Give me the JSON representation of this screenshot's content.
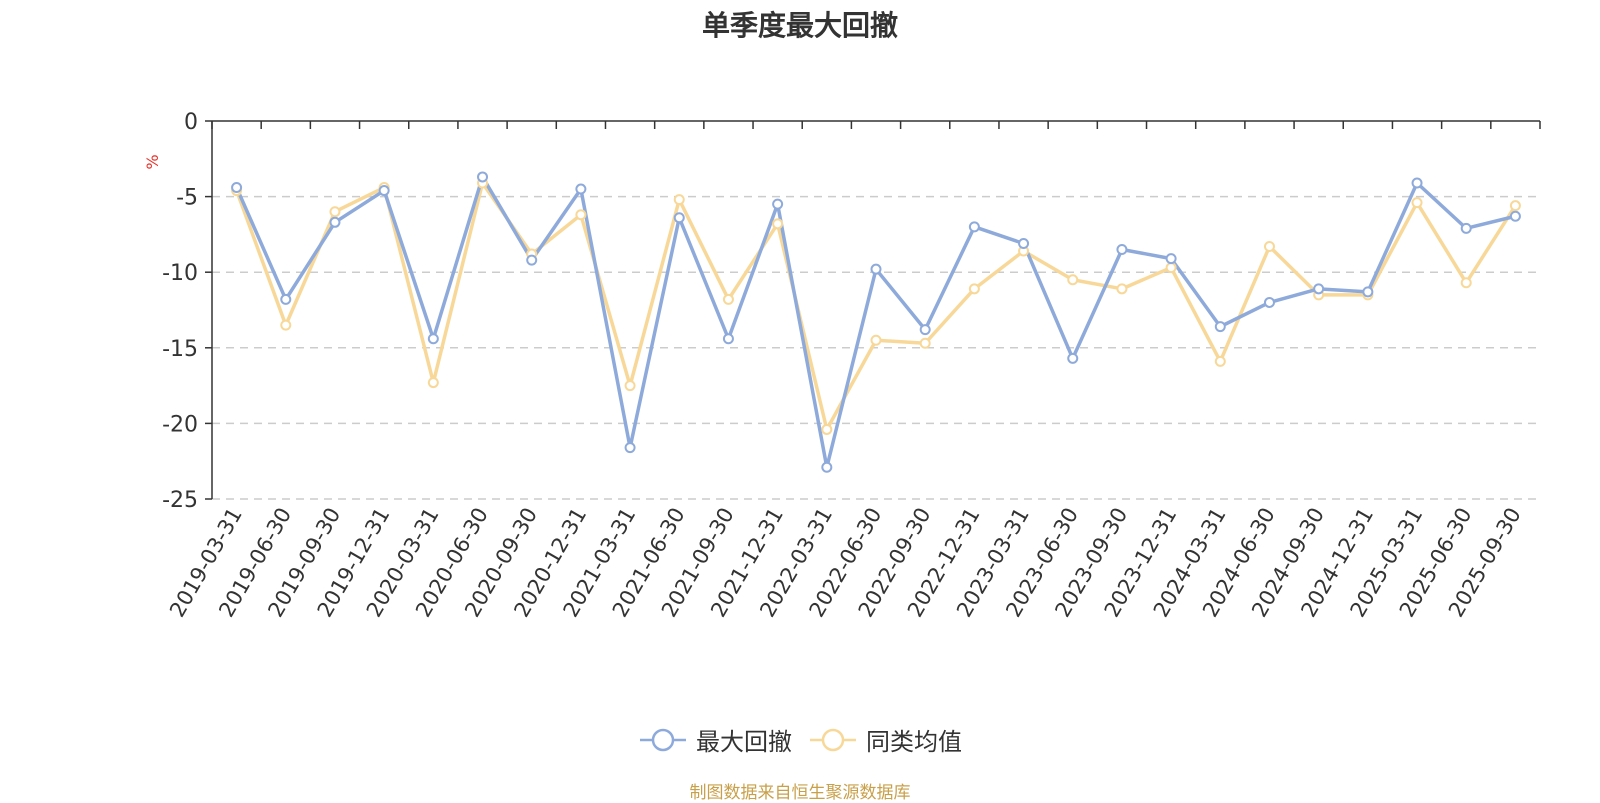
{
  "chart_data": {
    "type": "line",
    "title": "单季度最大回撤",
    "ylabel": "%",
    "xlabel": "",
    "ylim": [
      -25,
      0
    ],
    "yticks": [
      0,
      -5,
      -10,
      -15,
      -20,
      -25
    ],
    "grid": true,
    "legend_position": "bottom-center",
    "categories": [
      "2019-03-31",
      "2019-06-30",
      "2019-09-30",
      "2019-12-31",
      "2020-03-31",
      "2020-06-30",
      "2020-09-30",
      "2020-12-31",
      "2021-03-31",
      "2021-06-30",
      "2021-09-30",
      "2021-12-31",
      "2022-03-31",
      "2022-06-30",
      "2022-09-30",
      "2022-12-31",
      "2023-03-31",
      "2023-06-30",
      "2023-09-30",
      "2023-12-31",
      "2024-03-31",
      "2024-06-30",
      "2024-09-30",
      "2024-12-31",
      "2025-03-31",
      "2025-06-30",
      "2025-09-30"
    ],
    "series": [
      {
        "name": "最大回撤",
        "color": "#8eaadb",
        "values": [
          -4.4,
          -11.8,
          -6.7,
          -4.6,
          -14.4,
          -3.7,
          -9.2,
          -4.5,
          -21.6,
          -6.4,
          -14.4,
          -5.5,
          -22.9,
          -9.8,
          -13.8,
          -7.0,
          -8.1,
          -15.7,
          -8.5,
          -9.1,
          -13.6,
          -12.0,
          -11.1,
          -11.3,
          -4.1,
          -7.1,
          -6.3
        ]
      },
      {
        "name": "同类均值",
        "color": "#f8d898",
        "values": [
          -4.6,
          -13.5,
          -6.0,
          -4.4,
          -17.3,
          -4.1,
          -8.8,
          -6.2,
          -17.5,
          -5.2,
          -11.8,
          -6.8,
          -20.4,
          -14.5,
          -14.7,
          -11.1,
          -8.6,
          -10.5,
          -11.1,
          -9.7,
          -15.9,
          -8.3,
          -11.5,
          -11.5,
          -5.4,
          -10.7,
          -5.6
        ]
      }
    ]
  },
  "footer": {
    "source": "制图数据来自恒生聚源数据库"
  }
}
